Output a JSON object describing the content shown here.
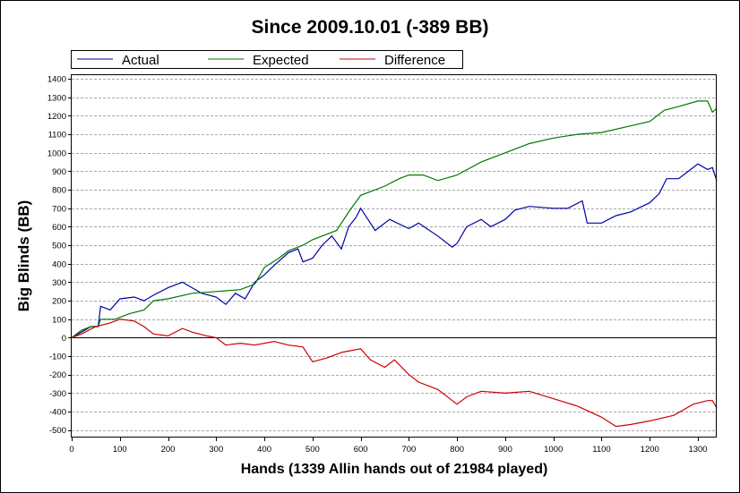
{
  "chart_data": {
    "type": "line",
    "title": "Since 2009.10.01 (-389 BB)",
    "xlabel": "Hands (1339 Allin hands out of 21984 played)",
    "ylabel": "Big Blinds (BB)",
    "xlim": [
      0,
      1339
    ],
    "ylim": [
      -540,
      1420
    ],
    "xticks": [
      0,
      100,
      200,
      300,
      400,
      500,
      600,
      700,
      800,
      900,
      1000,
      1100,
      1200,
      1300
    ],
    "yticks": [
      -500,
      -400,
      -300,
      -200,
      -100,
      0,
      100,
      200,
      300,
      400,
      500,
      600,
      700,
      800,
      900,
      1000,
      1100,
      1200,
      1300,
      1400
    ],
    "grid": true,
    "legend": "top-left",
    "series": [
      {
        "name": "Actual",
        "color": "#0000aa",
        "x": [
          0,
          20,
          40,
          55,
          60,
          80,
          100,
          130,
          150,
          170,
          200,
          230,
          250,
          270,
          300,
          320,
          340,
          360,
          380,
          400,
          420,
          450,
          470,
          480,
          500,
          520,
          540,
          560,
          575,
          590,
          600,
          620,
          630,
          660,
          700,
          720,
          760,
          790,
          800,
          820,
          850,
          870,
          900,
          920,
          950,
          1000,
          1030,
          1060,
          1070,
          1100,
          1130,
          1160,
          1200,
          1220,
          1235,
          1260,
          1280,
          1300,
          1320,
          1330,
          1339
        ],
        "y": [
          0,
          30,
          60,
          60,
          170,
          150,
          210,
          220,
          200,
          230,
          270,
          300,
          270,
          240,
          220,
          180,
          240,
          210,
          300,
          340,
          390,
          460,
          480,
          410,
          430,
          500,
          550,
          480,
          600,
          650,
          700,
          620,
          580,
          640,
          590,
          620,
          550,
          490,
          510,
          600,
          640,
          600,
          640,
          690,
          710,
          700,
          700,
          740,
          620,
          620,
          660,
          680,
          730,
          780,
          860,
          860,
          900,
          940,
          910,
          920,
          850
        ]
      },
      {
        "name": "Expected",
        "color": "#007700",
        "x": [
          0,
          20,
          40,
          55,
          60,
          90,
          120,
          150,
          170,
          200,
          250,
          300,
          350,
          380,
          400,
          430,
          450,
          480,
          500,
          530,
          550,
          575,
          600,
          620,
          650,
          680,
          700,
          730,
          760,
          800,
          850,
          900,
          950,
          1000,
          1050,
          1100,
          1150,
          1200,
          1230,
          1260,
          1300,
          1320,
          1330,
          1339
        ],
        "y": [
          0,
          40,
          60,
          60,
          100,
          100,
          130,
          150,
          200,
          210,
          240,
          250,
          260,
          290,
          380,
          430,
          470,
          500,
          530,
          560,
          580,
          680,
          770,
          790,
          820,
          860,
          880,
          880,
          850,
          880,
          950,
          1000,
          1050,
          1080,
          1100,
          1110,
          1140,
          1170,
          1230,
          1250,
          1280,
          1280,
          1220,
          1240
        ]
      },
      {
        "name": "Difference",
        "color": "#cc0000",
        "x": [
          0,
          20,
          50,
          80,
          100,
          130,
          150,
          170,
          200,
          230,
          250,
          280,
          300,
          320,
          350,
          380,
          420,
          450,
          480,
          500,
          530,
          560,
          600,
          620,
          650,
          670,
          700,
          720,
          760,
          790,
          800,
          820,
          850,
          900,
          950,
          1000,
          1050,
          1100,
          1130,
          1160,
          1200,
          1250,
          1290,
          1320,
          1330,
          1339
        ],
        "y": [
          0,
          20,
          60,
          80,
          100,
          90,
          60,
          20,
          10,
          50,
          30,
          10,
          0,
          -40,
          -30,
          -40,
          -20,
          -40,
          -50,
          -130,
          -110,
          -80,
          -60,
          -120,
          -160,
          -120,
          -200,
          -240,
          -280,
          -340,
          -360,
          -320,
          -290,
          -300,
          -290,
          -330,
          -370,
          -430,
          -480,
          -470,
          -450,
          -420,
          -360,
          -340,
          -340,
          -380
        ]
      }
    ]
  }
}
